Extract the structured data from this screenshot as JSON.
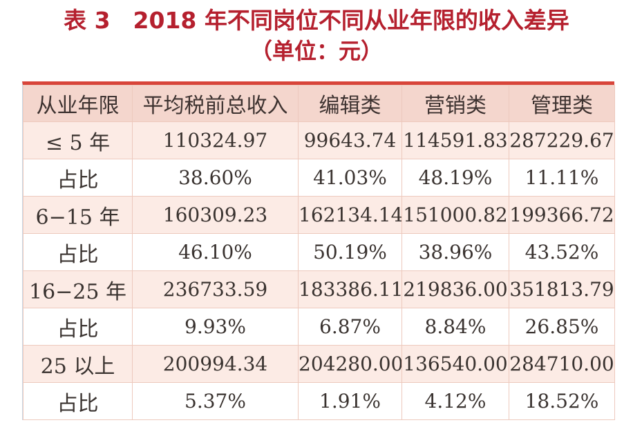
{
  "title": {
    "line1": "表 3　2018 年不同岗位不同从业年限的收入差异",
    "line2": "（单位：元）"
  },
  "colors": {
    "title": "#b5202e",
    "header_bg": "#f4d6cd",
    "value_row_bg": "#fcebe5",
    "top_border": "#d8453a"
  },
  "table": {
    "headers": [
      "从业年限",
      "平均税前总收入",
      "编辑类",
      "营销类",
      "管理类"
    ],
    "rows": [
      {
        "label": "≤ 5 年",
        "cells": [
          "110324.97",
          "99643.74",
          "114591.83",
          "287229.67"
        ]
      },
      {
        "label": "占比",
        "cells": [
          "38.60%",
          "41.03%",
          "48.19%",
          "11.11%"
        ]
      },
      {
        "label": "6−15 年",
        "cells": [
          "160309.23",
          "162134.14",
          "151000.82",
          "199366.72"
        ]
      },
      {
        "label": "占比",
        "cells": [
          "46.10%",
          "50.19%",
          "38.96%",
          "43.52%"
        ]
      },
      {
        "label": "16−25 年",
        "cells": [
          "236733.59",
          "183386.11",
          "219836.00",
          "351813.79"
        ]
      },
      {
        "label": "占比",
        "cells": [
          "9.93%",
          "6.87%",
          "8.84%",
          "26.85%"
        ]
      },
      {
        "label": "25 以上",
        "cells": [
          "200994.34",
          "204280.00",
          "136540.00",
          "284710.00"
        ]
      },
      {
        "label": "占比",
        "cells": [
          "5.37%",
          "1.91%",
          "4.12%",
          "18.52%"
        ]
      }
    ]
  },
  "chart_data": {
    "type": "table",
    "title": "表 3　2018 年不同岗位不同从业年限的收入差异（单位：元）",
    "columns": [
      "从业年限",
      "平均税前总收入",
      "编辑类",
      "营销类",
      "管理类"
    ],
    "rows": [
      [
        "≤ 5 年",
        110324.97,
        99643.74,
        114591.83,
        287229.67
      ],
      [
        "占比",
        "38.60%",
        "41.03%",
        "48.19%",
        "11.11%"
      ],
      [
        "6−15 年",
        160309.23,
        162134.14,
        151000.82,
        199366.72
      ],
      [
        "占比",
        "46.10%",
        "50.19%",
        "38.96%",
        "43.52%"
      ],
      [
        "16−25 年",
        236733.59,
        183386.11,
        219836.0,
        351813.79
      ],
      [
        "占比",
        "9.93%",
        "6.87%",
        "8.84%",
        "26.85%"
      ],
      [
        "25 以上",
        200994.34,
        204280.0,
        136540.0,
        284710.0
      ],
      [
        "占比",
        "5.37%",
        "1.91%",
        "4.12%",
        "18.52%"
      ]
    ]
  }
}
